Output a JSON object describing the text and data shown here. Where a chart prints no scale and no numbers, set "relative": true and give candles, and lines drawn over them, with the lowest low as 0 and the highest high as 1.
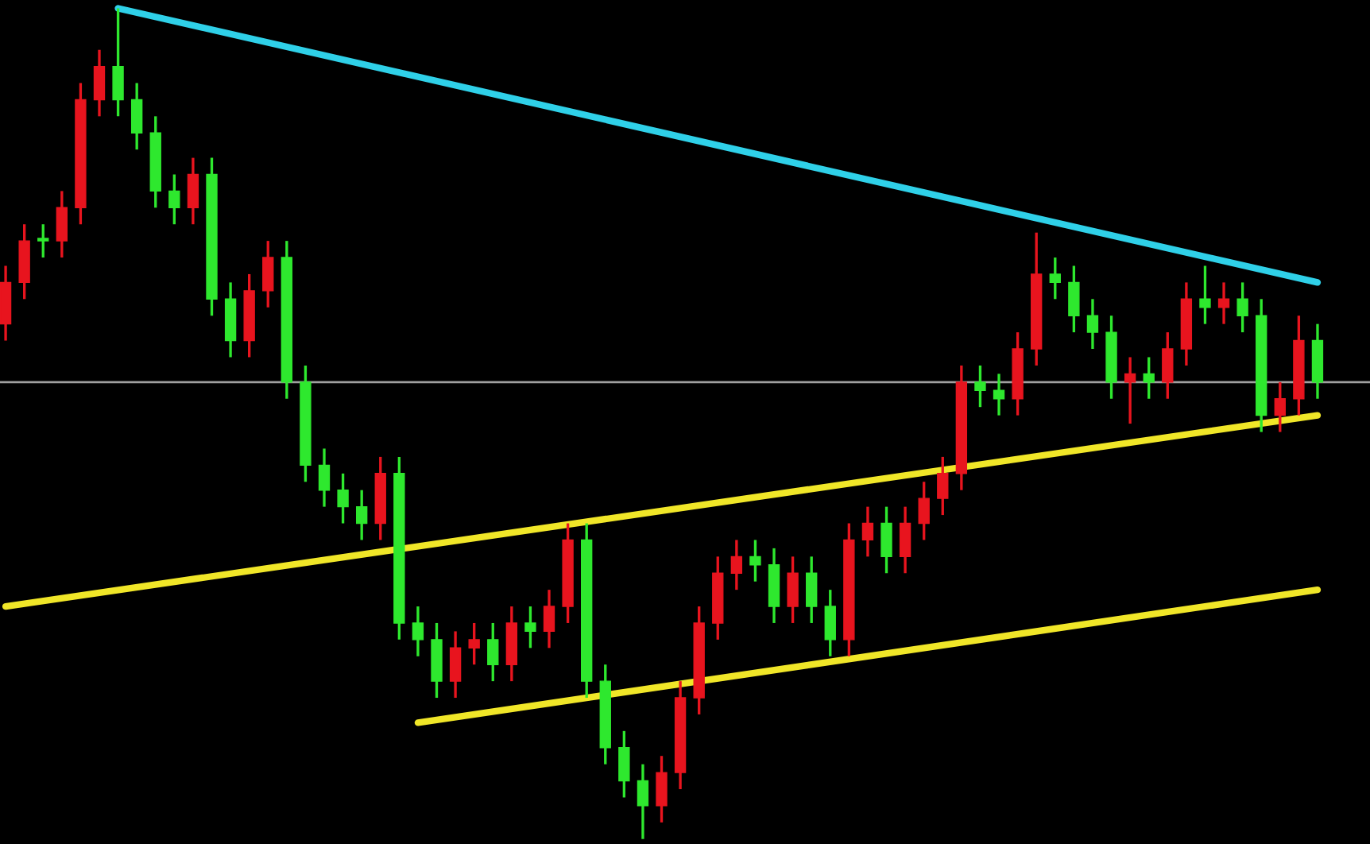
{
  "chart_data": {
    "type": "candlestick",
    "relative": true,
    "tick_labels": false,
    "categories": [
      null,
      null,
      null,
      null,
      null,
      null,
      null,
      null,
      null,
      null,
      null,
      null,
      null,
      null,
      null,
      null,
      null,
      null,
      null,
      null,
      null,
      null,
      null,
      null,
      null,
      null,
      null,
      null,
      null,
      null,
      null,
      null,
      null,
      null,
      null,
      null,
      null,
      null,
      null,
      null,
      null,
      null,
      null,
      null,
      null,
      null,
      null,
      null,
      null,
      null,
      null,
      null,
      null,
      null,
      null,
      null,
      null,
      null,
      null,
      null,
      null,
      null,
      null,
      null,
      null,
      null,
      null,
      null,
      null,
      null,
      null
    ],
    "ohlc": [
      [
        0.62,
        0.69,
        0.6,
        0.67
      ],
      [
        0.67,
        0.74,
        0.65,
        0.72
      ],
      [
        0.72,
        0.74,
        0.7,
        0.72
      ],
      [
        0.72,
        0.78,
        0.7,
        0.76
      ],
      [
        0.76,
        0.91,
        0.74,
        0.89
      ],
      [
        0.89,
        0.95,
        0.87,
        0.93
      ],
      [
        0.93,
        1.0,
        0.87,
        0.89
      ],
      [
        0.89,
        0.91,
        0.83,
        0.85
      ],
      [
        0.85,
        0.87,
        0.76,
        0.78
      ],
      [
        0.78,
        0.8,
        0.74,
        0.76
      ],
      [
        0.76,
        0.82,
        0.74,
        0.8
      ],
      [
        0.8,
        0.82,
        0.63,
        0.65
      ],
      [
        0.65,
        0.67,
        0.58,
        0.6
      ],
      [
        0.6,
        0.68,
        0.58,
        0.66
      ],
      [
        0.66,
        0.72,
        0.64,
        0.7
      ],
      [
        0.7,
        0.72,
        0.53,
        0.55
      ],
      [
        0.55,
        0.57,
        0.43,
        0.45
      ],
      [
        0.45,
        0.47,
        0.4,
        0.42
      ],
      [
        0.42,
        0.44,
        0.38,
        0.4
      ],
      [
        0.4,
        0.42,
        0.36,
        0.38
      ],
      [
        0.38,
        0.46,
        0.36,
        0.44
      ],
      [
        0.44,
        0.46,
        0.24,
        0.26
      ],
      [
        0.26,
        0.28,
        0.22,
        0.24
      ],
      [
        0.24,
        0.26,
        0.17,
        0.19
      ],
      [
        0.19,
        0.25,
        0.17,
        0.23
      ],
      [
        0.23,
        0.26,
        0.21,
        0.24
      ],
      [
        0.24,
        0.26,
        0.19,
        0.21
      ],
      [
        0.21,
        0.28,
        0.19,
        0.26
      ],
      [
        0.26,
        0.28,
        0.23,
        0.25
      ],
      [
        0.25,
        0.3,
        0.23,
        0.28
      ],
      [
        0.28,
        0.38,
        0.26,
        0.36
      ],
      [
        0.36,
        0.38,
        0.17,
        0.19
      ],
      [
        0.19,
        0.21,
        0.09,
        0.11
      ],
      [
        0.11,
        0.13,
        0.05,
        0.07
      ],
      [
        0.07,
        0.09,
        0.0,
        0.04
      ],
      [
        0.04,
        0.1,
        0.02,
        0.08
      ],
      [
        0.08,
        0.19,
        0.06,
        0.17
      ],
      [
        0.17,
        0.28,
        0.15,
        0.26
      ],
      [
        0.26,
        0.34,
        0.24,
        0.32
      ],
      [
        0.32,
        0.36,
        0.3,
        0.34
      ],
      [
        0.34,
        0.36,
        0.31,
        0.33
      ],
      [
        0.33,
        0.35,
        0.26,
        0.28
      ],
      [
        0.28,
        0.34,
        0.26,
        0.32
      ],
      [
        0.32,
        0.34,
        0.26,
        0.28
      ],
      [
        0.28,
        0.3,
        0.22,
        0.24
      ],
      [
        0.24,
        0.38,
        0.22,
        0.36
      ],
      [
        0.36,
        0.4,
        0.34,
        0.38
      ],
      [
        0.38,
        0.4,
        0.32,
        0.34
      ],
      [
        0.34,
        0.4,
        0.32,
        0.38
      ],
      [
        0.38,
        0.43,
        0.36,
        0.41
      ],
      [
        0.41,
        0.46,
        0.39,
        0.44
      ],
      [
        0.44,
        0.57,
        0.42,
        0.55
      ],
      [
        0.55,
        0.57,
        0.52,
        0.54
      ],
      [
        0.54,
        0.56,
        0.51,
        0.53
      ],
      [
        0.53,
        0.61,
        0.51,
        0.59
      ],
      [
        0.59,
        0.73,
        0.57,
        0.68
      ],
      [
        0.68,
        0.7,
        0.65,
        0.67
      ],
      [
        0.67,
        0.69,
        0.61,
        0.63
      ],
      [
        0.63,
        0.65,
        0.59,
        0.61
      ],
      [
        0.61,
        0.63,
        0.53,
        0.55
      ],
      [
        0.55,
        0.58,
        0.5,
        0.56
      ],
      [
        0.56,
        0.58,
        0.53,
        0.55
      ],
      [
        0.55,
        0.61,
        0.53,
        0.59
      ],
      [
        0.59,
        0.67,
        0.57,
        0.65
      ],
      [
        0.65,
        0.69,
        0.62,
        0.64
      ],
      [
        0.64,
        0.67,
        0.62,
        0.65
      ],
      [
        0.65,
        0.67,
        0.61,
        0.63
      ],
      [
        0.63,
        0.65,
        0.49,
        0.51
      ],
      [
        0.51,
        0.55,
        0.49,
        0.53
      ],
      [
        0.53,
        0.63,
        0.51,
        0.6
      ],
      [
        0.6,
        0.62,
        0.53,
        0.55
      ]
    ],
    "colors": [
      "#e8141e",
      "#e8141e",
      "#2ee82e",
      "#e8141e",
      "#e8141e",
      "#e8141e",
      "#2ee82e",
      "#2ee82e",
      "#2ee82e",
      "#2ee82e",
      "#e8141e",
      "#2ee82e",
      "#2ee82e",
      "#e8141e",
      "#e8141e",
      "#2ee82e",
      "#2ee82e",
      "#2ee82e",
      "#2ee82e",
      "#2ee82e",
      "#e8141e",
      "#2ee82e",
      "#2ee82e",
      "#2ee82e",
      "#e8141e",
      "#e8141e",
      "#2ee82e",
      "#e8141e",
      "#2ee82e",
      "#e8141e",
      "#e8141e",
      "#2ee82e",
      "#2ee82e",
      "#2ee82e",
      "#2ee82e",
      "#e8141e",
      "#e8141e",
      "#e8141e",
      "#e8141e",
      "#e8141e",
      "#2ee82e",
      "#2ee82e",
      "#e8141e",
      "#2ee82e",
      "#2ee82e",
      "#e8141e",
      "#e8141e",
      "#2ee82e",
      "#e8141e",
      "#e8141e",
      "#e8141e",
      "#e8141e",
      "#2ee82e",
      "#2ee82e",
      "#e8141e",
      "#e8141e",
      "#2ee82e",
      "#2ee82e",
      "#2ee82e",
      "#2ee82e",
      "#e8141e",
      "#2ee82e",
      "#e8141e",
      "#e8141e",
      "#2ee82e",
      "#e8141e",
      "#2ee82e",
      "#2ee82e",
      "#e8141e",
      "#e8141e",
      "#2ee82e"
    ],
    "series": [
      {
        "type": "line",
        "color": "#2fd0e8",
        "values": [
          null,
          null,
          null,
          null,
          null,
          null,
          1.0,
          null,
          null,
          null,
          null,
          null,
          null,
          null,
          null,
          null,
          null,
          null,
          null,
          null,
          null,
          null,
          null,
          null,
          null,
          null,
          null,
          null,
          null,
          null,
          null,
          null,
          null,
          null,
          null,
          null,
          null,
          null,
          null,
          null,
          null,
          null,
          null,
          null,
          null,
          null,
          null,
          null,
          null,
          null,
          null,
          null,
          null,
          null,
          null,
          null,
          null,
          null,
          null,
          null,
          null,
          null,
          null,
          null,
          null,
          null,
          null,
          null,
          null,
          null,
          0.67
        ]
      },
      {
        "type": "line",
        "color": "#f0e628",
        "values": [
          0.28,
          null,
          null,
          null,
          null,
          null,
          null,
          null,
          null,
          null,
          null,
          null,
          null,
          null,
          null,
          null,
          null,
          null,
          null,
          null,
          null,
          null,
          null,
          null,
          null,
          null,
          null,
          null,
          null,
          null,
          null,
          null,
          null,
          null,
          null,
          null,
          null,
          null,
          null,
          null,
          null,
          null,
          null,
          null,
          null,
          null,
          null,
          null,
          null,
          null,
          null,
          null,
          null,
          null,
          null,
          null,
          null,
          null,
          null,
          null,
          null,
          null,
          null,
          null,
          null,
          null,
          null,
          null,
          null,
          null,
          0.51
        ]
      },
      {
        "type": "line",
        "color": "#f0e628",
        "values": [
          null,
          null,
          null,
          null,
          null,
          null,
          null,
          null,
          null,
          null,
          null,
          null,
          null,
          null,
          null,
          null,
          null,
          null,
          null,
          null,
          null,
          null,
          0.14,
          null,
          null,
          null,
          null,
          null,
          null,
          null,
          null,
          null,
          null,
          null,
          null,
          null,
          null,
          null,
          null,
          null,
          null,
          null,
          null,
          null,
          null,
          null,
          null,
          null,
          null,
          null,
          null,
          null,
          null,
          null,
          null,
          null,
          null,
          null,
          null,
          null,
          null,
          null,
          null,
          null,
          null,
          null,
          null,
          null,
          null,
          null,
          0.3
        ]
      }
    ],
    "ref_lines": [
      {
        "axis": "y",
        "value": 0.55,
        "color": "#a0a0a0"
      }
    ]
  }
}
